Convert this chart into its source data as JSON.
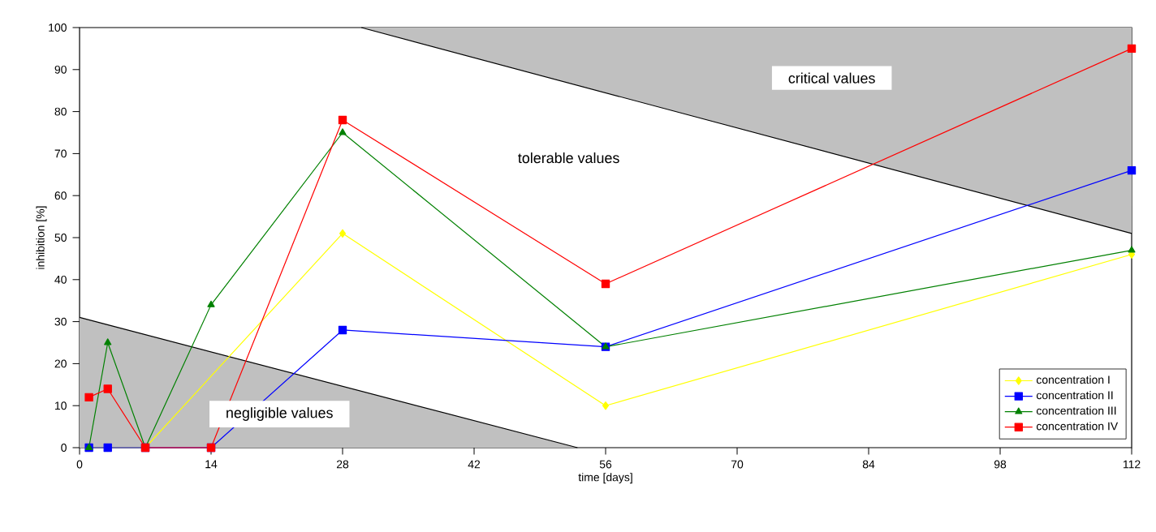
{
  "chart_data": {
    "type": "line",
    "xlabel": "time [days]",
    "ylabel": "inhibition [%]",
    "xlim": [
      0,
      112
    ],
    "xticks": [
      0,
      14,
      28,
      42,
      56,
      70,
      84,
      98,
      112
    ],
    "ylim": [
      0,
      100
    ],
    "yticks": [
      0,
      10,
      20,
      30,
      40,
      50,
      60,
      70,
      80,
      90,
      100
    ],
    "grid": false,
    "legend": "bottom right",
    "line_style": "solid",
    "series": [
      {
        "type": "area",
        "color": "#c0c0c0",
        "x": [
          0,
          53
        ],
        "values": [
          31,
          0
        ]
      },
      {
        "type": "area",
        "color": "#c0c0c0",
        "x": [
          30,
          112
        ],
        "values": [
          100,
          51
        ]
      },
      {
        "name": "concentration I",
        "color": "#ffff00",
        "marker": "diamond",
        "x": [
          1,
          3,
          7,
          28,
          56,
          112
        ],
        "values": [
          0,
          0,
          0,
          51,
          10,
          46
        ]
      },
      {
        "name": "concentration II",
        "color": "#0000ff",
        "marker": "square",
        "x": [
          1,
          3,
          7,
          14,
          28,
          56,
          112
        ],
        "values": [
          0,
          0,
          0,
          0,
          28,
          24,
          66
        ]
      },
      {
        "name": "concentration III",
        "color": "#008000",
        "marker": "triangle",
        "x": [
          1,
          3,
          7,
          14,
          28,
          56,
          112
        ],
        "values": [
          0,
          25,
          0,
          34,
          75,
          24,
          47
        ]
      },
      {
        "name": "concentration IV",
        "color": "#ff0000",
        "marker": "square",
        "x": [
          1,
          3,
          7,
          14,
          28,
          56,
          112
        ],
        "values": [
          12,
          14,
          0,
          0,
          78,
          39,
          95
        ]
      }
    ],
    "annotations": [
      "negligible values",
      "tolerable values",
      "critical values"
    ]
  }
}
